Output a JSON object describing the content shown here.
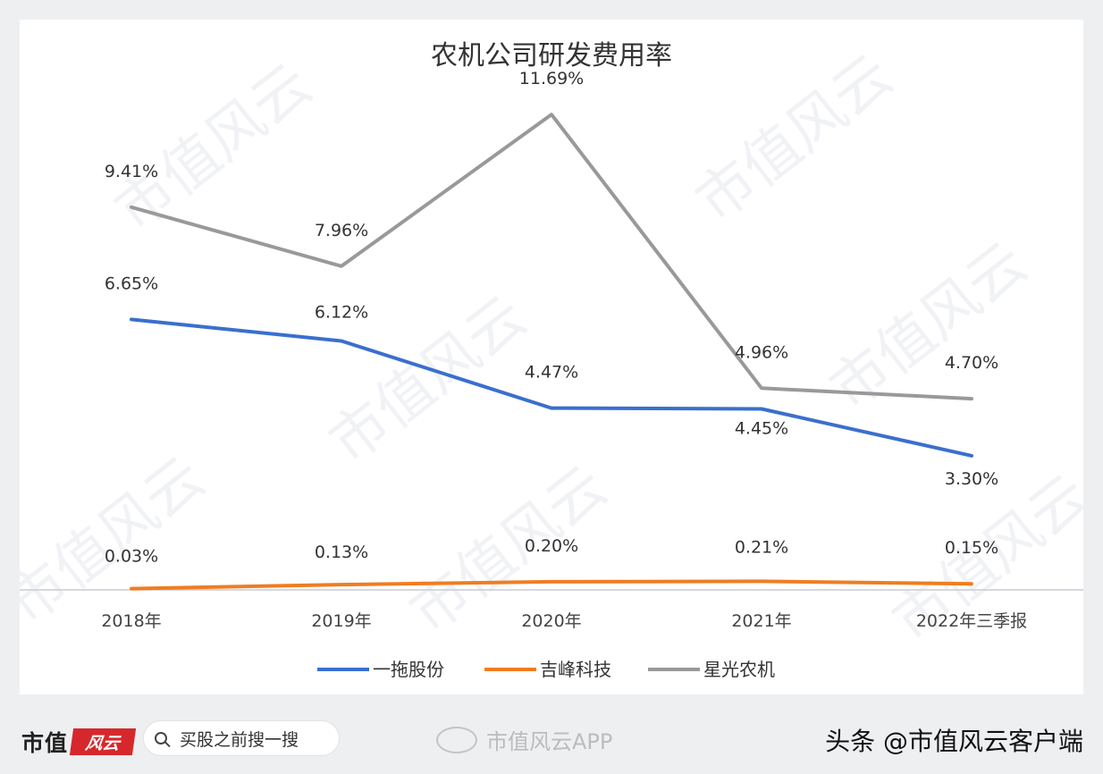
{
  "chart_data": {
    "type": "line",
    "title": "农机公司研发费用率",
    "categories": [
      "2018年",
      "2019年",
      "2020年",
      "2021年",
      "2022年三季报"
    ],
    "unit": "%",
    "series": [
      {
        "name": "一拖股份",
        "color": "#3a6fce",
        "values": [
          6.65,
          6.12,
          4.47,
          4.45,
          3.3
        ],
        "labels": [
          "6.65%",
          "6.12%",
          "4.47%",
          "4.45%",
          "3.30%"
        ]
      },
      {
        "name": "吉峰科技",
        "color": "#ef7d22",
        "values": [
          0.03,
          0.13,
          0.2,
          0.21,
          0.15
        ],
        "labels": [
          "0.03%",
          "0.13%",
          "0.20%",
          "0.21%",
          "0.15%"
        ]
      },
      {
        "name": "星光农机",
        "color": "#999999",
        "values": [
          9.41,
          7.96,
          11.69,
          4.96,
          4.7
        ],
        "labels": [
          "9.41%",
          "7.96%",
          "11.69%",
          "4.96%",
          "4.70%"
        ]
      }
    ],
    "ylim": [
      0,
      13
    ],
    "legend": "bottom",
    "grid": false
  },
  "watermark": "市值风云",
  "footer": {
    "brand": "市值",
    "brand_logo": "风云",
    "search_placeholder": "买股之前搜一搜",
    "weibo_text": "市值风云APP",
    "source": "头条 @市值风云客户端"
  }
}
